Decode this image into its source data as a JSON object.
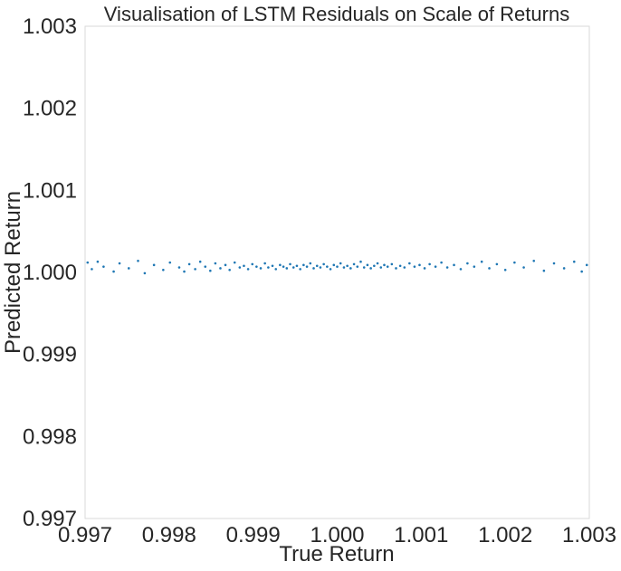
{
  "chart_data": {
    "type": "scatter",
    "title": "Visualisation of LSTM Residuals on Scale of Returns",
    "xlabel": "True Return",
    "ylabel": "Predicted Return",
    "xlim": [
      0.997,
      1.003
    ],
    "ylim": [
      0.997,
      1.003
    ],
    "xticks": [
      "0.997",
      "0.998",
      "0.999",
      "1.000",
      "1.001",
      "1.002",
      "1.003"
    ],
    "yticks": [
      "0.997",
      "0.998",
      "0.999",
      "1.000",
      "1.001",
      "1.002",
      "1.003"
    ],
    "grid": false,
    "legend": "none",
    "point_color": "#1f77b4",
    "series": [
      {
        "points": [
          [
            0.99703,
            1.00012
          ],
          [
            0.99708,
            1.00004
          ],
          [
            0.99715,
            1.00013
          ],
          [
            0.99722,
            1.00007
          ],
          [
            0.99734,
            1.00001
          ],
          [
            0.99741,
            1.00011
          ],
          [
            0.99752,
            1.00005
          ],
          [
            0.99763,
            1.00014
          ],
          [
            0.99771,
            0.99999
          ],
          [
            0.99782,
            1.00009
          ],
          [
            0.99793,
            1.00003
          ],
          [
            0.99801,
            1.00012
          ],
          [
            0.99812,
            1.00006
          ],
          [
            0.99818,
            1.00001
          ],
          [
            0.99824,
            1.0001
          ],
          [
            0.99831,
            1.00004
          ],
          [
            0.99837,
            1.00013
          ],
          [
            0.99843,
            1.00007
          ],
          [
            0.99849,
            1.00002
          ],
          [
            0.99855,
            1.00011
          ],
          [
            0.99861,
            1.00005
          ],
          [
            0.99867,
            1.00009
          ],
          [
            0.99872,
            1.00003
          ],
          [
            0.99878,
            1.00012
          ],
          [
            0.99884,
            1.00006
          ],
          [
            0.99889,
            1.00008
          ],
          [
            0.99894,
            1.00004
          ],
          [
            0.99899,
            1.0001
          ],
          [
            0.99904,
            1.00007
          ],
          [
            0.99909,
            1.00005
          ],
          [
            0.99914,
            1.00011
          ],
          [
            0.99918,
            1.00006
          ],
          [
            0.99923,
            1.00008
          ],
          [
            0.99927,
            1.00004
          ],
          [
            0.99932,
            1.00009
          ],
          [
            0.99936,
            1.00007
          ],
          [
            0.9994,
            1.00005
          ],
          [
            0.99944,
            1.0001
          ],
          [
            0.99948,
            1.00006
          ],
          [
            0.99952,
            1.00008
          ],
          [
            0.99956,
            1.00004
          ],
          [
            0.9996,
            1.00009
          ],
          [
            0.99964,
            1.00007
          ],
          [
            0.99968,
            1.00011
          ],
          [
            0.99972,
            1.00005
          ],
          [
            0.99976,
            1.00008
          ],
          [
            0.9998,
            1.00006
          ],
          [
            0.99984,
            1.0001
          ],
          [
            0.99988,
            1.00007
          ],
          [
            0.99992,
            1.00004
          ],
          [
            0.99996,
            1.00009
          ],
          [
            1.0,
            1.00007
          ],
          [
            1.00004,
            1.00011
          ],
          [
            1.00008,
            1.00006
          ],
          [
            1.00012,
            1.00008
          ],
          [
            1.00016,
            1.00005
          ],
          [
            1.0002,
            1.0001
          ],
          [
            1.00024,
            1.00007
          ],
          [
            1.00028,
            1.00013
          ],
          [
            1.00032,
            1.00006
          ],
          [
            1.00036,
            1.00009
          ],
          [
            1.0004,
            1.00005
          ],
          [
            1.00044,
            1.00008
          ],
          [
            1.00048,
            1.00011
          ],
          [
            1.00052,
            1.00006
          ],
          [
            1.00056,
            1.00009
          ],
          [
            1.0006,
            1.00007
          ],
          [
            1.00065,
            1.0001
          ],
          [
            1.0007,
            1.00005
          ],
          [
            1.00075,
            1.00008
          ],
          [
            1.0008,
            1.00006
          ],
          [
            1.00086,
            1.00011
          ],
          [
            1.00092,
            1.00007
          ],
          [
            1.00098,
            1.00009
          ],
          [
            1.00104,
            1.00005
          ],
          [
            1.0011,
            1.0001
          ],
          [
            1.00117,
            1.00007
          ],
          [
            1.00124,
            1.00012
          ],
          [
            1.00131,
            1.00006
          ],
          [
            1.00139,
            1.00009
          ],
          [
            1.00147,
            1.00004
          ],
          [
            1.00155,
            1.00011
          ],
          [
            1.00163,
            1.00007
          ],
          [
            1.00172,
            1.00013
          ],
          [
            1.00181,
            1.00005
          ],
          [
            1.0019,
            1.0001
          ],
          [
            1.002,
            1.00003
          ],
          [
            1.00211,
            1.00012
          ],
          [
            1.00222,
            1.00006
          ],
          [
            1.00234,
            1.00014
          ],
          [
            1.00246,
            1.00002
          ],
          [
            1.00258,
            1.00011
          ],
          [
            1.0027,
            1.00005
          ],
          [
            1.00282,
            1.00013
          ],
          [
            1.00291,
            1.00001
          ],
          [
            1.00297,
            1.00009
          ]
        ]
      }
    ]
  }
}
